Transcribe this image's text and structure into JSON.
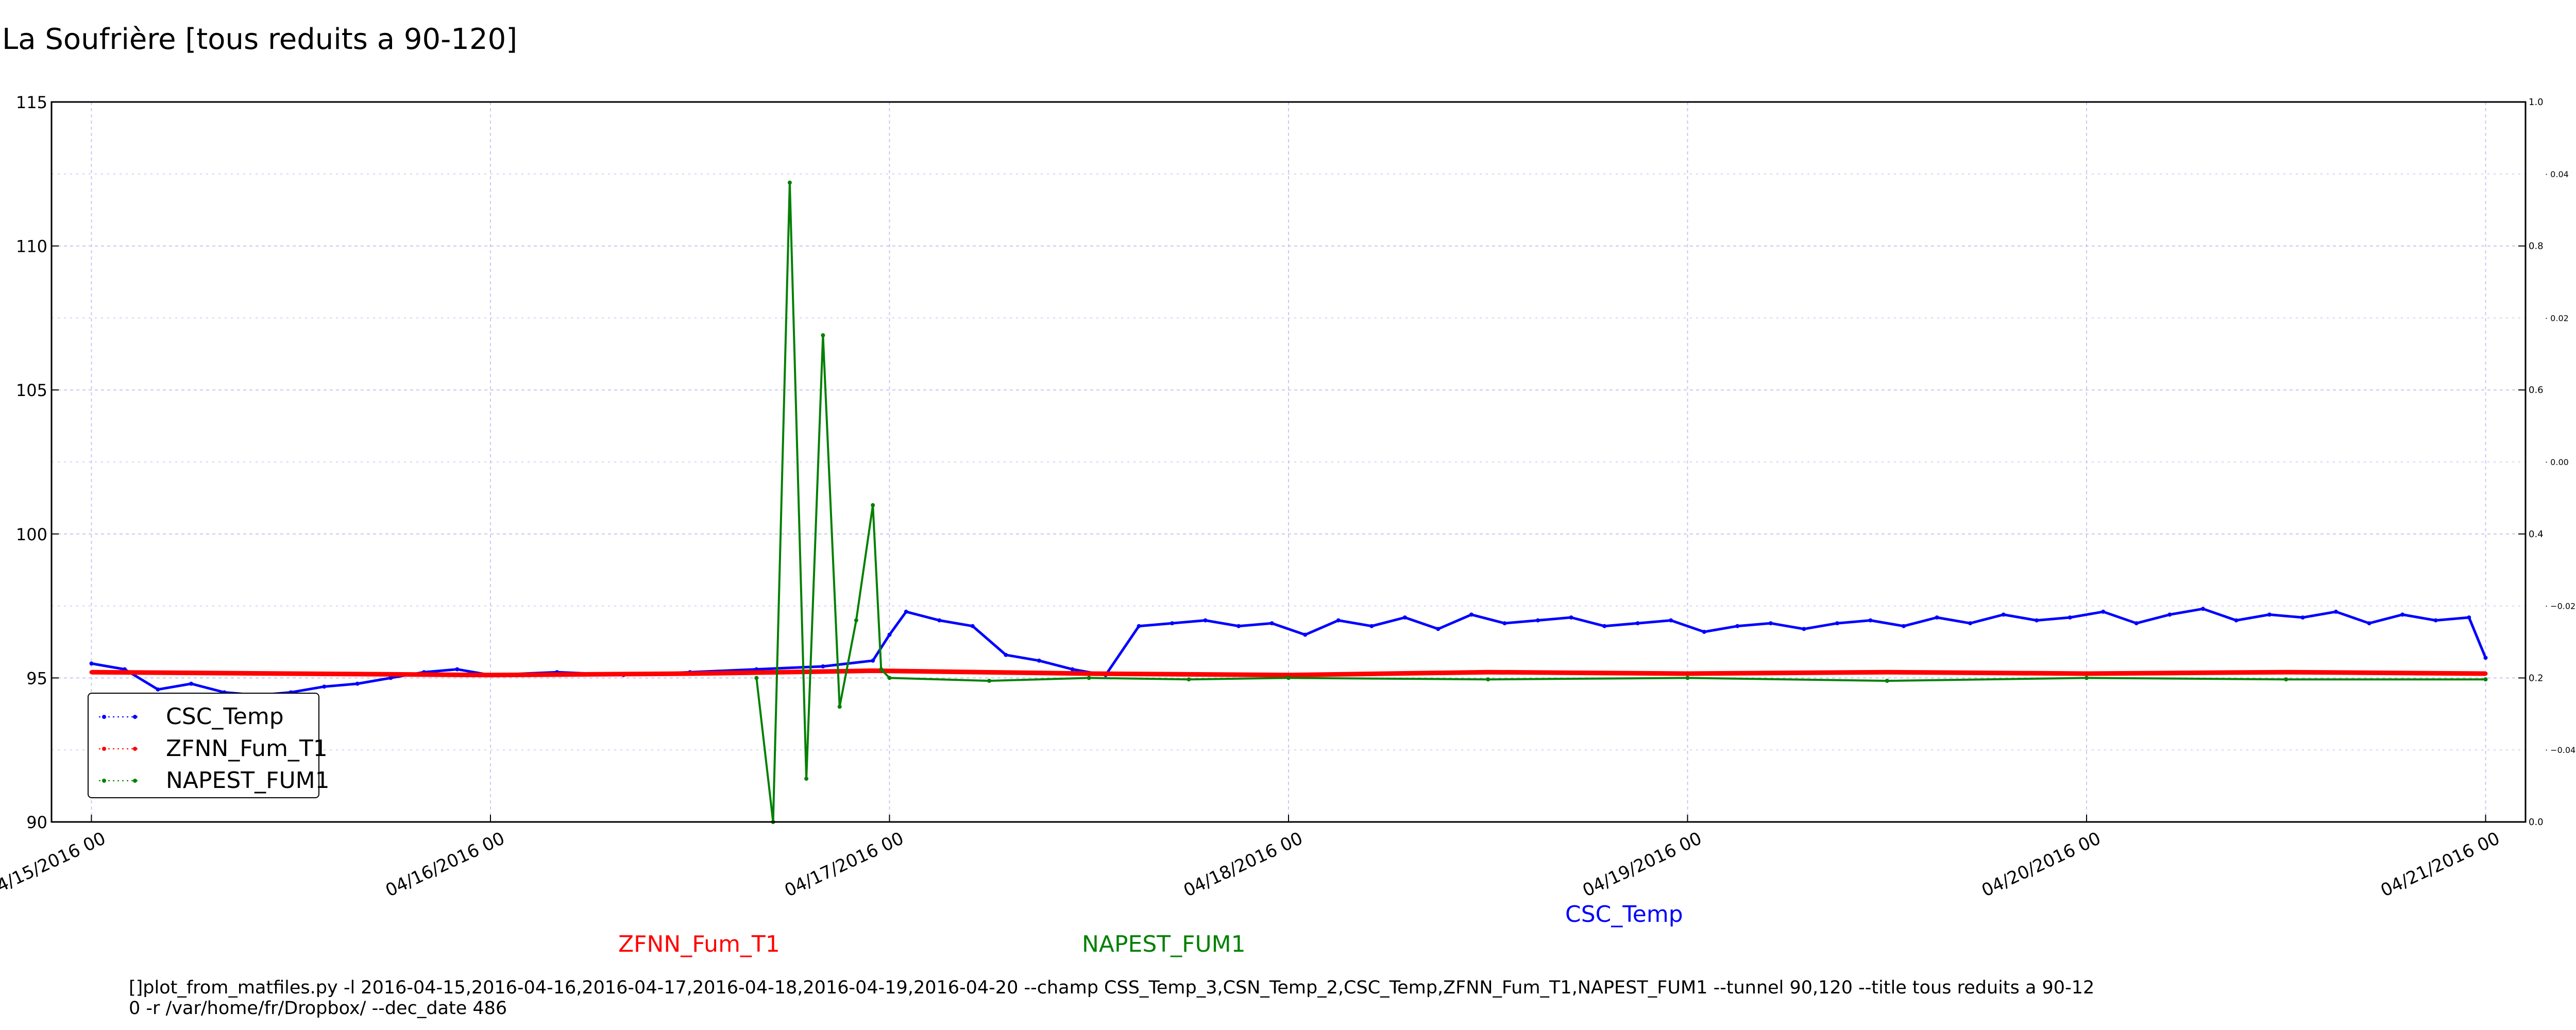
{
  "page": {
    "title": "La Soufrière [tous reduits a 90-120]"
  },
  "captions": {
    "zfnn": "ZFNN_Fum_T1",
    "napest": "NAPEST_FUM1",
    "csc": "CSC_Temp",
    "command_line_1": "[]plot_from_matfiles.py -l 2016-04-15,2016-04-16,2016-04-17,2016-04-18,2016-04-19,2016-04-20 --champ CSS_Temp_3,CSN_Temp_2,CSC_Temp,ZFNN_Fum_T1,NAPEST_FUM1 --tunnel 90,120 --title tous reduits a 90-12",
    "command_line_2": "0 -r /var/home/fr/Dropbox/ --dec_date 486"
  },
  "colors": {
    "csc": "#0000ff",
    "zfnn": "#ff0000",
    "napest": "#008000",
    "grid": "#c8c8f0",
    "axis": "#000000"
  },
  "legend": {
    "placement": "lower-left",
    "entries": [
      {
        "label": "CSC_Temp",
        "color": "#0000ff"
      },
      {
        "label": "ZFNN_Fum_T1",
        "color": "#ff0000"
      },
      {
        "label": "NAPEST_FUM1",
        "color": "#008000"
      }
    ]
  },
  "chart_data": {
    "type": "line",
    "title": "La Soufrière [tous reduits a 90-120]",
    "grid": true,
    "xlim": [
      "2016-04-14T21:36",
      "2016-04-21T02:24"
    ],
    "ylim": [
      90,
      115
    ],
    "x_ticks": [
      {
        "at": "2016-04-15T00:00",
        "label": "04/15/2016 00"
      },
      {
        "at": "2016-04-16T00:00",
        "label": "04/16/2016 00"
      },
      {
        "at": "2016-04-17T00:00",
        "label": "04/17/2016 00"
      },
      {
        "at": "2016-04-18T00:00",
        "label": "04/18/2016 00"
      },
      {
        "at": "2016-04-19T00:00",
        "label": "04/19/2016 00"
      },
      {
        "at": "2016-04-20T00:00",
        "label": "04/20/2016 00"
      },
      {
        "at": "2016-04-21T00:00",
        "label": "04/21/2016 00"
      }
    ],
    "y_ticks": [
      "90",
      "95",
      "100",
      "105",
      "110",
      "115"
    ],
    "right_axis_ticks": [
      "0.0",
      "0.2",
      "0.4",
      "0.6",
      "0.8",
      "1.0"
    ],
    "right_axis_minor_ticks": [
      "−0.04",
      "−0.02",
      "0.00",
      "0.02",
      "0.04"
    ],
    "series": [
      {
        "name": "CSC_Temp",
        "color": "#0000ff",
        "x": [
          "2016-04-15T00:00",
          "2016-04-15T02:00",
          "2016-04-15T04:00",
          "2016-04-15T06:00",
          "2016-04-15T08:00",
          "2016-04-15T10:00",
          "2016-04-15T12:00",
          "2016-04-15T14:00",
          "2016-04-15T16:00",
          "2016-04-15T18:00",
          "2016-04-15T20:00",
          "2016-04-15T22:00",
          "2016-04-16T00:00",
          "2016-04-16T04:00",
          "2016-04-16T08:00",
          "2016-04-16T12:00",
          "2016-04-16T16:00",
          "2016-04-16T20:00",
          "2016-04-16T23:00",
          "2016-04-17T00:00",
          "2016-04-17T01:00",
          "2016-04-17T03:00",
          "2016-04-17T05:00",
          "2016-04-17T07:00",
          "2016-04-17T09:00",
          "2016-04-17T11:00",
          "2016-04-17T13:00",
          "2016-04-17T15:00",
          "2016-04-17T17:00",
          "2016-04-17T19:00",
          "2016-04-17T21:00",
          "2016-04-17T23:00",
          "2016-04-18T01:00",
          "2016-04-18T03:00",
          "2016-04-18T05:00",
          "2016-04-18T07:00",
          "2016-04-18T09:00",
          "2016-04-18T11:00",
          "2016-04-18T13:00",
          "2016-04-18T15:00",
          "2016-04-18T17:00",
          "2016-04-18T19:00",
          "2016-04-18T21:00",
          "2016-04-18T23:00",
          "2016-04-19T01:00",
          "2016-04-19T03:00",
          "2016-04-19T05:00",
          "2016-04-19T07:00",
          "2016-04-19T09:00",
          "2016-04-19T11:00",
          "2016-04-19T13:00",
          "2016-04-19T15:00",
          "2016-04-19T17:00",
          "2016-04-19T19:00",
          "2016-04-19T21:00",
          "2016-04-19T23:00",
          "2016-04-20T01:00",
          "2016-04-20T03:00",
          "2016-04-20T05:00",
          "2016-04-20T07:00",
          "2016-04-20T09:00",
          "2016-04-20T11:00",
          "2016-04-20T13:00",
          "2016-04-20T15:00",
          "2016-04-20T17:00",
          "2016-04-20T19:00",
          "2016-04-20T21:00",
          "2016-04-20T23:00",
          "2016-04-21T00:00"
        ],
        "values": [
          95.5,
          95.3,
          94.6,
          94.8,
          94.5,
          94.4,
          94.5,
          94.7,
          94.8,
          95.0,
          95.2,
          95.3,
          95.1,
          95.2,
          95.1,
          95.2,
          95.3,
          95.4,
          95.6,
          96.5,
          97.3,
          97.0,
          96.8,
          95.8,
          95.6,
          95.3,
          95.1,
          96.8,
          96.9,
          97.0,
          96.8,
          96.9,
          96.5,
          97.0,
          96.8,
          97.1,
          96.7,
          97.2,
          96.9,
          97.0,
          97.1,
          96.8,
          96.9,
          97.0,
          96.6,
          96.8,
          96.9,
          96.7,
          96.9,
          97.0,
          96.8,
          97.1,
          96.9,
          97.2,
          97.0,
          97.1,
          97.3,
          96.9,
          97.2,
          97.4,
          97.0,
          97.2,
          97.1,
          97.3,
          96.9,
          97.2,
          97.0,
          97.1,
          95.7
        ]
      },
      {
        "name": "ZFNN_Fum_T1",
        "color": "#ff0000",
        "x": [
          "2016-04-15T00:00",
          "2016-04-15T12:00",
          "2016-04-16T00:00",
          "2016-04-16T12:00",
          "2016-04-16T23:00",
          "2016-04-17T12:00",
          "2016-04-18T00:00",
          "2016-04-18T12:00",
          "2016-04-19T00:00",
          "2016-04-19T12:00",
          "2016-04-20T00:00",
          "2016-04-20T12:00",
          "2016-04-21T00:00"
        ],
        "values": [
          95.2,
          95.15,
          95.1,
          95.15,
          95.25,
          95.15,
          95.1,
          95.2,
          95.15,
          95.2,
          95.15,
          95.2,
          95.15
        ]
      },
      {
        "name": "NAPEST_FUM1",
        "color": "#008000",
        "x": [
          "2016-04-16T16:00",
          "2016-04-16T17:00",
          "2016-04-16T18:00",
          "2016-04-16T19:00",
          "2016-04-16T20:00",
          "2016-04-16T21:00",
          "2016-04-16T22:00",
          "2016-04-16T23:00",
          "2016-04-16T23:30",
          "2016-04-17T00:00",
          "2016-04-17T06:00",
          "2016-04-17T12:00",
          "2016-04-17T18:00",
          "2016-04-18T00:00",
          "2016-04-18T12:00",
          "2016-04-19T00:00",
          "2016-04-19T12:00",
          "2016-04-20T00:00",
          "2016-04-20T12:00",
          "2016-04-21T00:00"
        ],
        "values": [
          95.0,
          90.0,
          112.2,
          91.5,
          106.9,
          94.0,
          97.0,
          101.0,
          95.3,
          95.0,
          94.9,
          95.0,
          94.95,
          95.0,
          94.95,
          95.0,
          94.9,
          95.0,
          94.95,
          94.95
        ]
      }
    ]
  }
}
